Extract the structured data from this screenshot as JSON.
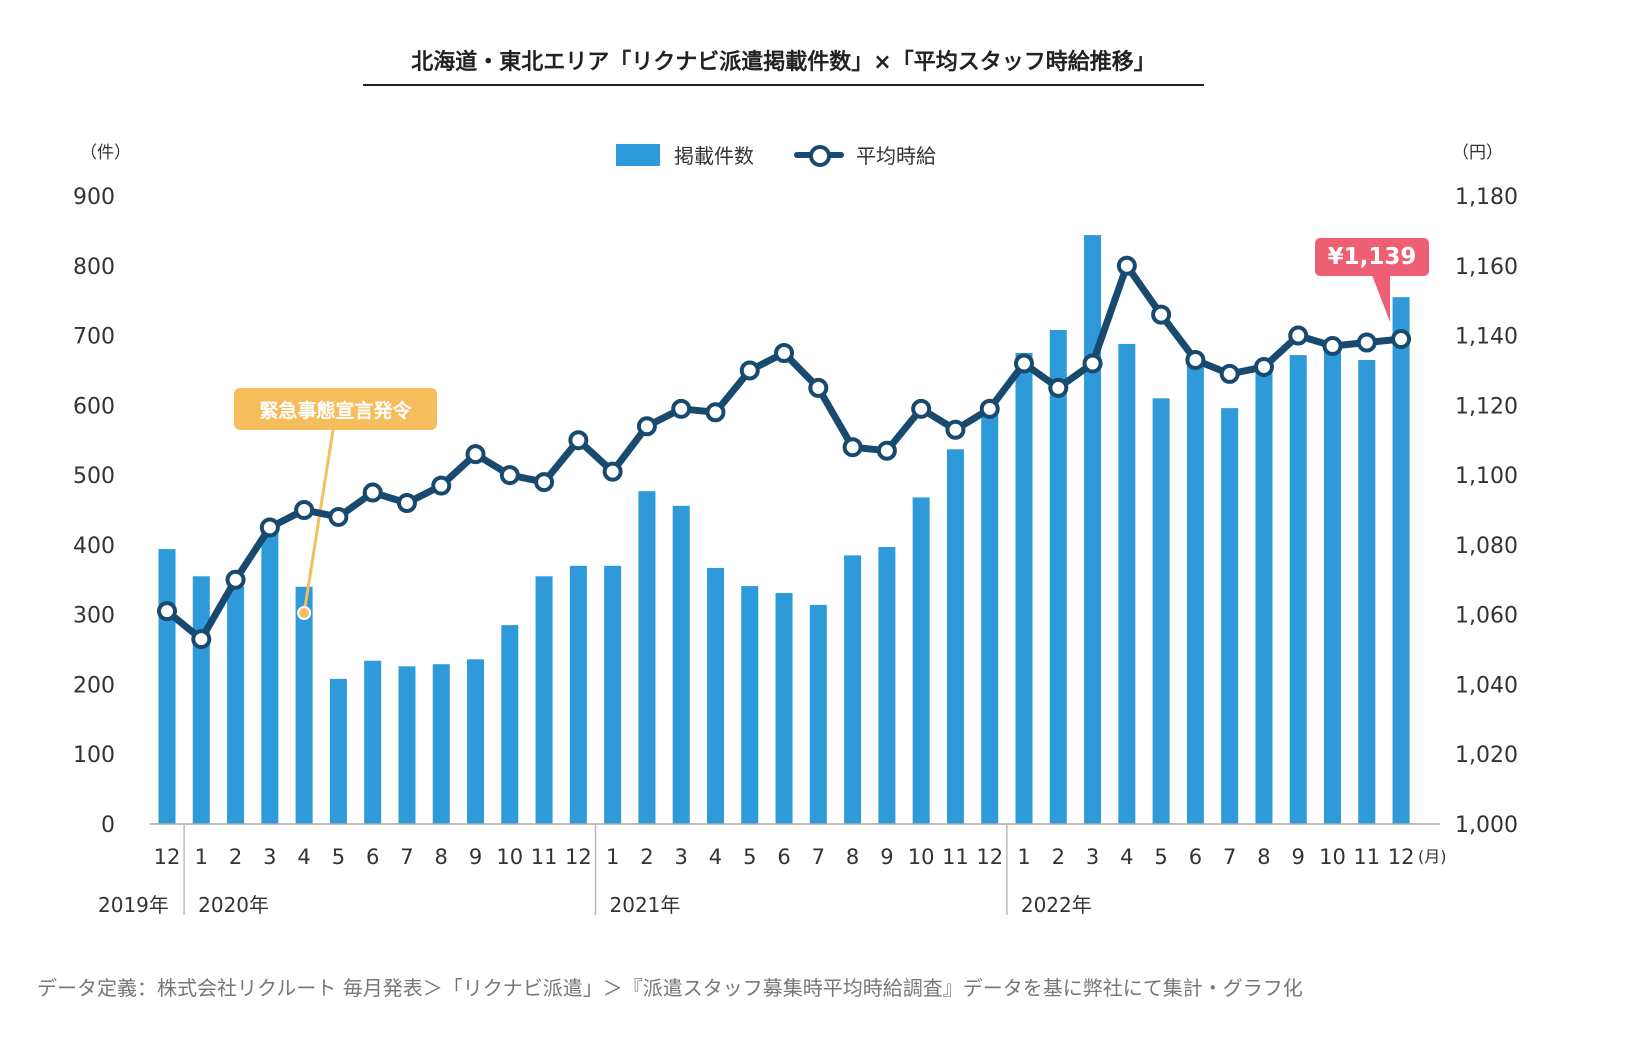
{
  "title": "北海道・東北エリア「リクナビ派遣掲載件数」×「平均スタッフ時給推移」",
  "footer": "データ定義：株式会社リクルート 毎月発表＞「リクナビ派遣」＞『派遣スタッフ募集時平均時給調査』データを基に弊社にて集計・グラフ化",
  "colors": {
    "bar": "#2e9ad9",
    "line": "#174a6e",
    "callout_orange": "#f5bd5c",
    "callout_red": "#ef5f73"
  },
  "chart_data": {
    "type": "bar+line",
    "title": "北海道・東北エリア「リクナビ派遣掲載件数」×「平均スタッフ時給推移」",
    "left_unit": "（件）",
    "right_unit": "（円）",
    "month_unit": "(月)",
    "legend": {
      "bar": "掲載件数",
      "line": "平均時給",
      "placement": "top-center"
    },
    "left_ylim": [
      0,
      900
    ],
    "left_ticks": [
      "0",
      "100",
      "200",
      "300",
      "400",
      "500",
      "600",
      "700",
      "800",
      "900"
    ],
    "right_ylim": [
      1000,
      1180
    ],
    "right_ticks": [
      "1,000",
      "1,020",
      "1,040",
      "1,060",
      "1,080",
      "1,100",
      "1,120",
      "1,140",
      "1,160",
      "1,180"
    ],
    "months": [
      "12",
      "1",
      "2",
      "3",
      "4",
      "5",
      "6",
      "7",
      "8",
      "9",
      "10",
      "11",
      "12",
      "1",
      "2",
      "3",
      "4",
      "5",
      "6",
      "7",
      "8",
      "9",
      "10",
      "11",
      "12",
      "1",
      "2",
      "3",
      "4",
      "5",
      "6",
      "7",
      "8",
      "9",
      "10",
      "11",
      "12"
    ],
    "years": [
      {
        "label": "2019年",
        "start": 0
      },
      {
        "label": "2020年",
        "start": 1
      },
      {
        "label": "2021年",
        "start": 13
      },
      {
        "label": "2022年",
        "start": 25
      }
    ],
    "series": [
      {
        "name": "掲載件数",
        "type": "bar",
        "axis": "left",
        "values": [
          394,
          355,
          340,
          420,
          340,
          208,
          234,
          226,
          229,
          236,
          285,
          355,
          370,
          370,
          477,
          456,
          367,
          341,
          331,
          314,
          385,
          397,
          468,
          537,
          590,
          675,
          708,
          844,
          688,
          610,
          660,
          596,
          650,
          672,
          680,
          665,
          755
        ]
      },
      {
        "name": "平均時給",
        "type": "line",
        "axis": "right",
        "values": [
          1061,
          1053,
          1070,
          1085,
          1090,
          1088,
          1095,
          1092,
          1097,
          1106,
          1100,
          1098,
          1110,
          1101,
          1114,
          1119,
          1118,
          1130,
          1135,
          1125,
          1108,
          1107,
          1119,
          1113,
          1119,
          1132,
          1125,
          1132,
          1160,
          1146,
          1133,
          1129,
          1131,
          1140,
          1137,
          1138,
          1139
        ]
      }
    ],
    "annotations": [
      {
        "text": "緊急事態宣言発令",
        "index": 4
      },
      {
        "text": "¥1,139",
        "index": 36
      }
    ]
  }
}
